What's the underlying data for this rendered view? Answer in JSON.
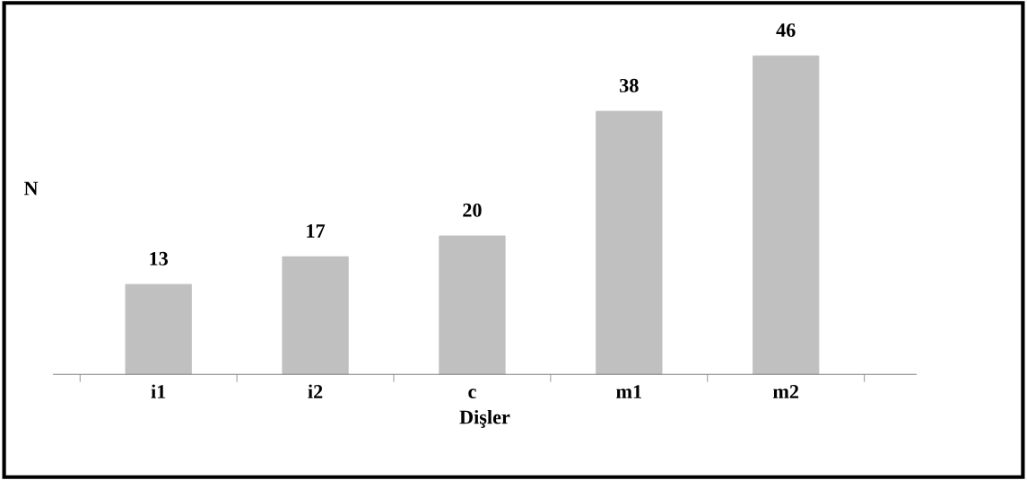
{
  "chart_data": {
    "type": "bar",
    "xlabel": "Dişler",
    "ylabel": "N",
    "categories": [
      "i1",
      "i2",
      "c",
      "m1",
      "m2"
    ],
    "values": [
      13,
      17,
      20,
      38,
      46
    ],
    "color": "#c0c0c0",
    "data_labels": true,
    "grid": false,
    "legend": false
  }
}
